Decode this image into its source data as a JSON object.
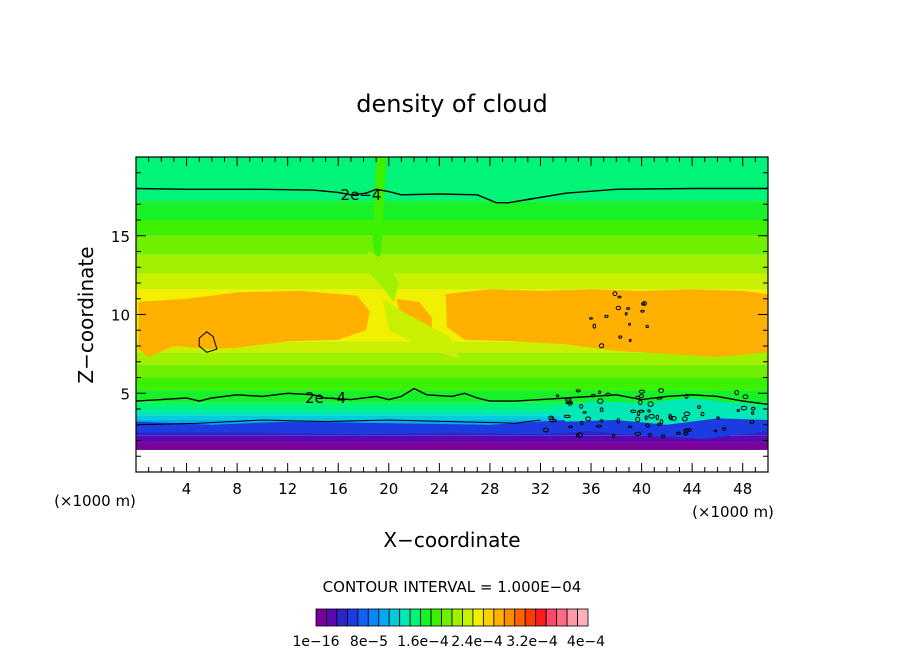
{
  "chart_data": {
    "type": "heatmap",
    "title": "density of cloud",
    "xlabel": "X−coordinate",
    "ylabel": "Z−coordinate",
    "x_unit_label": "(×1000 m)",
    "x_unit_label_right": "(×1000 m)",
    "xlim": [
      0,
      50
    ],
    "ylim": [
      0,
      20
    ],
    "x_ticks": [
      4,
      8,
      12,
      16,
      20,
      24,
      28,
      32,
      36,
      40,
      44,
      48
    ],
    "y_ticks": [
      5,
      10,
      15
    ],
    "contour_interval_text": "CONTOUR INTERVAL = 1.000E−04",
    "contour_labels": [
      {
        "text": "2e−4",
        "x": 17.8,
        "y": 17.6
      },
      {
        "text": "2e−4",
        "x": 15.0,
        "y": 4.7
      }
    ],
    "colorbar": {
      "colors": [
        "#7a009a",
        "#5a08b0",
        "#2d24c8",
        "#1a3ce0",
        "#1260f4",
        "#0a86ff",
        "#00aaf0",
        "#00ccdc",
        "#00e8b4",
        "#00f478",
        "#18f028",
        "#3cf000",
        "#70f000",
        "#a0f000",
        "#c8f000",
        "#f0f000",
        "#ffd000",
        "#ffb000",
        "#ff8c00",
        "#ff6400",
        "#ff3c00",
        "#ff1c1c",
        "#ff4868",
        "#ff6a84",
        "#ff98a8",
        "#ffb0b8"
      ],
      "tick_labels": [
        "1e−16",
        "8e−5",
        "1.6e−4",
        "2.4e−4",
        "3.2e−4",
        "4e−4"
      ]
    }
  }
}
